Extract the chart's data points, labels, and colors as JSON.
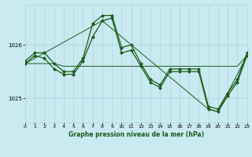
{
  "background_color": "#c8eaf0",
  "grid_color": "#aed4dc",
  "line_color": "#1a5c1a",
  "title": "Graphe pression niveau de la mer (hPa)",
  "xlim": [
    0,
    23
  ],
  "ylim": [
    1024.55,
    1026.75
  ],
  "yticks": [
    1025,
    1026
  ],
  "xticks": [
    0,
    1,
    2,
    3,
    4,
    5,
    6,
    7,
    8,
    9,
    10,
    11,
    12,
    13,
    14,
    15,
    16,
    17,
    18,
    19,
    20,
    21,
    22,
    23
  ],
  "series": [
    {
      "x": [
        0,
        1,
        2,
        3,
        4,
        5,
        6,
        7,
        8,
        9,
        10,
        11,
        12,
        13,
        14,
        15,
        16,
        17,
        18,
        19,
        20,
        21,
        22,
        23
      ],
      "y": [
        1025.7,
        1025.85,
        1025.85,
        1025.65,
        1025.5,
        1025.5,
        1025.75,
        1026.4,
        1026.55,
        1026.55,
        1025.95,
        1026.0,
        1025.65,
        1025.35,
        1025.25,
        1025.55,
        1025.55,
        1025.55,
        1025.55,
        1024.85,
        1024.8,
        1025.1,
        1025.35,
        1025.85
      ],
      "marker": "D",
      "markersize": 2.0,
      "linewidth": 0.9
    },
    {
      "x": [
        0,
        1,
        2,
        3,
        4,
        5,
        6,
        7,
        8,
        9,
        10,
        11,
        12,
        13,
        14,
        15,
        16,
        17,
        18,
        19,
        20,
        21,
        22,
        23
      ],
      "y": [
        1025.65,
        1025.8,
        1025.75,
        1025.55,
        1025.45,
        1025.45,
        1025.7,
        1026.15,
        1026.45,
        1026.5,
        1025.85,
        1025.9,
        1025.6,
        1025.3,
        1025.2,
        1025.5,
        1025.5,
        1025.5,
        1025.5,
        1024.8,
        1024.75,
        1025.05,
        1025.3,
        1025.8
      ],
      "marker": "D",
      "markersize": 2.0,
      "linewidth": 0.9
    },
    {
      "x": [
        0,
        1,
        2,
        3,
        4,
        5,
        6,
        7,
        8,
        9,
        10,
        11,
        12,
        13,
        14,
        15,
        16,
        17,
        18,
        19,
        20,
        21,
        22,
        23
      ],
      "y": [
        1025.65,
        1025.65,
        1025.65,
        1025.65,
        1025.6,
        1025.6,
        1025.6,
        1025.6,
        1025.6,
        1025.6,
        1025.6,
        1025.6,
        1025.6,
        1025.6,
        1025.6,
        1025.6,
        1025.6,
        1025.6,
        1025.6,
        1025.6,
        1025.6,
        1025.6,
        1025.6,
        1025.8
      ],
      "marker": null,
      "linewidth": 0.7
    },
    {
      "x": [
        0,
        8,
        19,
        20,
        23
      ],
      "y": [
        1025.65,
        1026.45,
        1024.8,
        1024.75,
        1025.8
      ],
      "marker": null,
      "linewidth": 0.7
    }
  ]
}
